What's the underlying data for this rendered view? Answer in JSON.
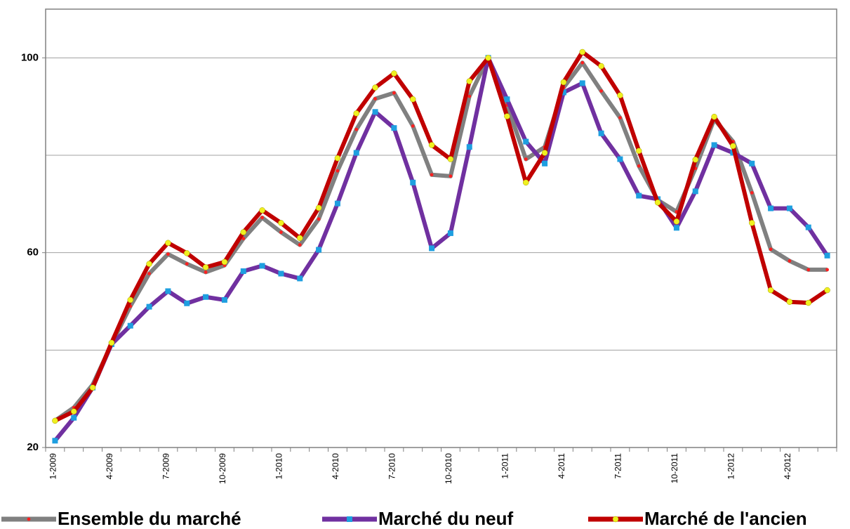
{
  "chart_data": {
    "type": "line",
    "categories": [
      "1-2009",
      null,
      null,
      "4-2009",
      null,
      null,
      "7-2009",
      null,
      null,
      "10-2009",
      null,
      null,
      "1-2010",
      null,
      null,
      "4-2010",
      null,
      null,
      "7-2010",
      null,
      null,
      "10-2010",
      null,
      null,
      "1-2011",
      null,
      null,
      "4-2011",
      null,
      null,
      "7-2011",
      null,
      null,
      "10-2011",
      null,
      null,
      "1-2012",
      null,
      null,
      "4-2012",
      null,
      null
    ],
    "ylim": [
      20,
      110
    ],
    "yticks": [
      20,
      60,
      100
    ],
    "grid_lines": [
      40,
      60,
      80,
      100
    ],
    "series": [
      {
        "name": "Ensemble du marché",
        "color": "#808080",
        "marker": "dot",
        "marker_color": "#ff2020",
        "values": [
          25.5,
          28.2,
          32.9,
          41.2,
          49.0,
          55.7,
          59.7,
          57.7,
          56.0,
          57.4,
          62.9,
          67.2,
          64.2,
          61.6,
          66.9,
          76.8,
          85.3,
          91.6,
          92.8,
          86.0,
          76.0,
          75.7,
          92.1,
          100,
          90.3,
          79.2,
          81.7,
          93.9,
          99.0,
          93.2,
          87.7,
          77.8,
          70.8,
          68.4,
          77.3,
          87.4,
          82.8,
          72.3,
          60.7,
          58.3,
          56.5,
          56.5
        ]
      },
      {
        "name": "Marché du neuf",
        "color": "#7030a0",
        "marker": "square",
        "marker_color": "#1e9fe0",
        "values": [
          21.4,
          26.1,
          32.3,
          41.2,
          45.0,
          48.9,
          52.1,
          49.6,
          50.9,
          50.3,
          56.2,
          57.3,
          55.7,
          54.7,
          60.6,
          70.1,
          80.5,
          88.9,
          85.6,
          74.4,
          60.9,
          64.0,
          81.7,
          100,
          91.5,
          82.8,
          78.3,
          92.9,
          94.8,
          84.5,
          79.2,
          71.7,
          71.0,
          65.1,
          72.6,
          82.1,
          80.5,
          78.3,
          69.1,
          69.1,
          65.2,
          59.4
        ]
      },
      {
        "name": "Marché de l'ancien",
        "color": "#c00000",
        "marker": "circle",
        "marker_color": "#f0f020",
        "values": [
          25.5,
          27.4,
          32.3,
          41.5,
          50.3,
          57.7,
          62.0,
          59.9,
          57.0,
          58.1,
          64.2,
          68.7,
          66.1,
          63.0,
          69.2,
          79.4,
          88.6,
          93.9,
          96.8,
          91.5,
          82.1,
          79.2,
          95.2,
          100,
          88.0,
          74.4,
          80.5,
          95.0,
          101.2,
          98.3,
          92.3,
          80.9,
          70.3,
          66.4,
          79.1,
          87.9,
          81.9,
          66.1,
          52.3,
          49.9,
          49.7,
          52.3
        ]
      }
    ]
  }
}
